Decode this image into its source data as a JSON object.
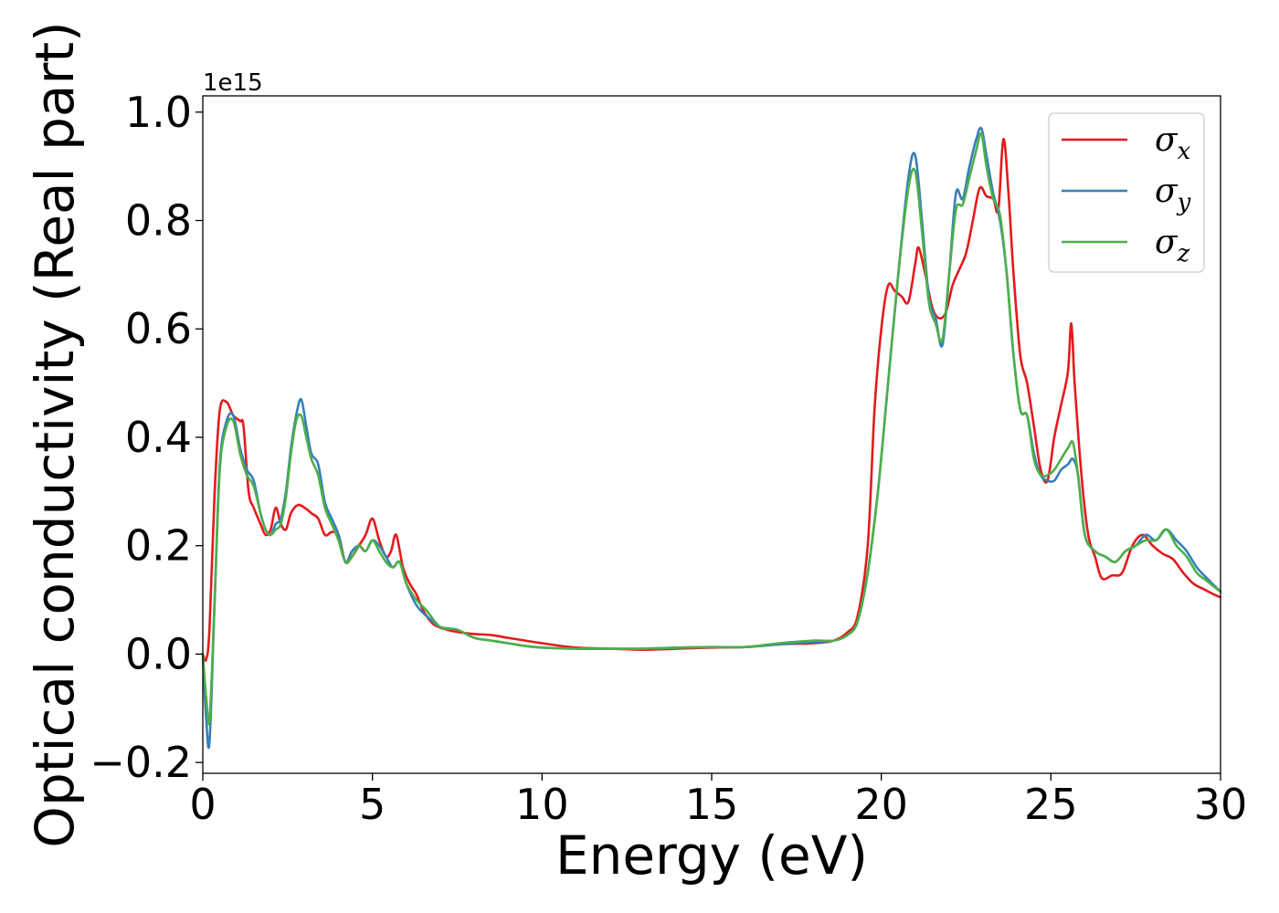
{
  "chart_data": {
    "type": "line",
    "xlabel": "Energy (eV)",
    "ylabel": "Optical conductivity (Real part)",
    "y_offset_text": "1e15",
    "xlim": [
      0,
      30
    ],
    "ylim": [
      -0.22,
      1.03
    ],
    "x_ticks": [
      0,
      5,
      10,
      15,
      20,
      25,
      30
    ],
    "x_tick_labels": [
      "0",
      "5",
      "10",
      "15",
      "20",
      "25",
      "30"
    ],
    "y_ticks": [
      -0.2,
      0.0,
      0.2,
      0.4,
      0.6,
      0.8,
      1.0
    ],
    "y_tick_labels": [
      "−0.2",
      "0.0",
      "0.2",
      "0.4",
      "0.6",
      "0.8",
      "1.0"
    ],
    "grid": false,
    "legend_position": "top-right",
    "series": [
      {
        "name": "σx",
        "symbol": "σ",
        "subscript": "x",
        "color": "#e41a1c",
        "x": [
          0,
          0.1,
          0.2,
          0.35,
          0.5,
          0.7,
          0.9,
          1.1,
          1.2,
          1.35,
          1.5,
          1.7,
          1.85,
          2.0,
          2.15,
          2.3,
          2.45,
          2.6,
          2.8,
          3.0,
          3.2,
          3.4,
          3.6,
          3.8,
          4.0,
          4.2,
          4.4,
          4.6,
          4.8,
          5.0,
          5.2,
          5.4,
          5.55,
          5.7,
          5.9,
          6.1,
          6.3,
          6.5,
          6.8,
          7.2,
          7.6,
          8.0,
          8.5,
          9.0,
          9.5,
          10,
          11,
          12,
          13,
          14,
          15,
          16,
          17,
          18,
          18.6,
          19.0,
          19.3,
          19.6,
          19.8,
          20.0,
          20.2,
          20.4,
          20.6,
          20.8,
          21.0,
          21.1,
          21.3,
          21.5,
          21.7,
          21.9,
          22.1,
          22.3,
          22.5,
          22.7,
          22.9,
          23.1,
          23.3,
          23.45,
          23.6,
          23.75,
          23.9,
          24.1,
          24.3,
          24.5,
          24.7,
          24.9,
          25.1,
          25.3,
          25.5,
          25.6,
          25.7,
          25.9,
          26.1,
          26.3,
          26.5,
          26.8,
          27.1,
          27.4,
          27.7,
          28.0,
          28.3,
          28.6,
          28.9,
          29.2,
          29.5,
          29.8,
          30
        ],
        "values": [
          0,
          -0.01,
          0.05,
          0.3,
          0.45,
          0.465,
          0.44,
          0.43,
          0.42,
          0.3,
          0.27,
          0.24,
          0.22,
          0.23,
          0.27,
          0.24,
          0.23,
          0.26,
          0.275,
          0.27,
          0.26,
          0.25,
          0.22,
          0.225,
          0.22,
          0.17,
          0.18,
          0.2,
          0.22,
          0.25,
          0.21,
          0.18,
          0.19,
          0.22,
          0.16,
          0.13,
          0.11,
          0.08,
          0.055,
          0.045,
          0.04,
          0.037,
          0.035,
          0.03,
          0.025,
          0.02,
          0.012,
          0.01,
          0.008,
          0.01,
          0.012,
          0.013,
          0.018,
          0.02,
          0.025,
          0.04,
          0.07,
          0.2,
          0.45,
          0.6,
          0.68,
          0.67,
          0.66,
          0.65,
          0.72,
          0.75,
          0.7,
          0.64,
          0.62,
          0.63,
          0.68,
          0.71,
          0.74,
          0.8,
          0.86,
          0.845,
          0.84,
          0.82,
          0.95,
          0.85,
          0.7,
          0.55,
          0.5,
          0.42,
          0.34,
          0.32,
          0.4,
          0.46,
          0.52,
          0.61,
          0.5,
          0.33,
          0.22,
          0.18,
          0.14,
          0.145,
          0.15,
          0.2,
          0.22,
          0.2,
          0.185,
          0.175,
          0.15,
          0.13,
          0.12,
          0.11,
          0.105
        ]
      },
      {
        "name": "σy",
        "symbol": "σ",
        "subscript": "y",
        "color": "#377eb8",
        "x": [
          0,
          0.1,
          0.2,
          0.35,
          0.5,
          0.7,
          0.9,
          1.1,
          1.3,
          1.5,
          1.7,
          1.85,
          2.0,
          2.15,
          2.3,
          2.45,
          2.6,
          2.75,
          2.9,
          3.05,
          3.2,
          3.4,
          3.6,
          3.8,
          4.0,
          4.2,
          4.4,
          4.6,
          4.8,
          5.0,
          5.2,
          5.4,
          5.6,
          5.8,
          6.0,
          6.3,
          6.6,
          7.0,
          7.5,
          8.0,
          8.5,
          9.0,
          9.5,
          10,
          11,
          12,
          13,
          14,
          15,
          16,
          17,
          18,
          18.6,
          19.0,
          19.3,
          19.6,
          19.9,
          20.2,
          20.5,
          20.8,
          21.0,
          21.2,
          21.4,
          21.6,
          21.8,
          22.0,
          22.2,
          22.4,
          22.6,
          22.8,
          22.95,
          23.1,
          23.3,
          23.5,
          23.7,
          23.9,
          24.1,
          24.3,
          24.5,
          24.7,
          24.9,
          25.1,
          25.3,
          25.5,
          25.65,
          25.8,
          26.0,
          26.3,
          26.6,
          26.9,
          27.2,
          27.5,
          27.8,
          28.1,
          28.4,
          28.7,
          29.0,
          29.3,
          29.6,
          30
        ],
        "values": [
          0,
          -0.12,
          -0.16,
          0.1,
          0.35,
          0.43,
          0.44,
          0.38,
          0.34,
          0.32,
          0.26,
          0.23,
          0.22,
          0.24,
          0.25,
          0.3,
          0.38,
          0.44,
          0.47,
          0.42,
          0.37,
          0.35,
          0.28,
          0.25,
          0.22,
          0.17,
          0.19,
          0.2,
          0.19,
          0.21,
          0.2,
          0.18,
          0.16,
          0.17,
          0.13,
          0.09,
          0.07,
          0.05,
          0.045,
          0.03,
          0.025,
          0.02,
          0.015,
          0.012,
          0.01,
          0.01,
          0.01,
          0.012,
          0.013,
          0.013,
          0.018,
          0.022,
          0.025,
          0.035,
          0.06,
          0.15,
          0.3,
          0.5,
          0.7,
          0.88,
          0.92,
          0.8,
          0.66,
          0.62,
          0.57,
          0.7,
          0.85,
          0.84,
          0.9,
          0.95,
          0.97,
          0.92,
          0.85,
          0.8,
          0.7,
          0.55,
          0.45,
          0.44,
          0.37,
          0.33,
          0.32,
          0.32,
          0.34,
          0.35,
          0.36,
          0.33,
          0.22,
          0.19,
          0.18,
          0.17,
          0.19,
          0.2,
          0.22,
          0.21,
          0.23,
          0.21,
          0.19,
          0.16,
          0.14,
          0.115
        ]
      },
      {
        "name": "σz",
        "symbol": "σ",
        "subscript": "z",
        "color": "#4daf4a",
        "x": [
          0,
          0.1,
          0.2,
          0.35,
          0.5,
          0.7,
          0.9,
          1.1,
          1.3,
          1.5,
          1.7,
          1.85,
          2.0,
          2.15,
          2.3,
          2.45,
          2.6,
          2.75,
          2.9,
          3.05,
          3.2,
          3.4,
          3.6,
          3.8,
          4.0,
          4.2,
          4.4,
          4.6,
          4.8,
          5.0,
          5.2,
          5.4,
          5.6,
          5.8,
          6.0,
          6.3,
          6.6,
          7.0,
          7.5,
          8.0,
          8.5,
          9.0,
          9.5,
          10,
          11,
          12,
          13,
          14,
          15,
          16,
          17,
          18,
          18.6,
          19.0,
          19.3,
          19.6,
          19.9,
          20.2,
          20.5,
          20.8,
          21.0,
          21.2,
          21.4,
          21.6,
          21.8,
          22.0,
          22.2,
          22.4,
          22.6,
          22.8,
          22.95,
          23.1,
          23.3,
          23.5,
          23.7,
          23.9,
          24.1,
          24.3,
          24.5,
          24.7,
          24.9,
          25.1,
          25.3,
          25.5,
          25.65,
          25.8,
          26.0,
          26.3,
          26.6,
          26.9,
          27.2,
          27.5,
          27.8,
          28.1,
          28.4,
          28.7,
          29.0,
          29.3,
          29.6,
          30
        ],
        "values": [
          0,
          -0.08,
          -0.12,
          0.1,
          0.34,
          0.42,
          0.43,
          0.37,
          0.33,
          0.31,
          0.26,
          0.23,
          0.22,
          0.23,
          0.24,
          0.29,
          0.37,
          0.43,
          0.44,
          0.4,
          0.36,
          0.33,
          0.27,
          0.24,
          0.21,
          0.17,
          0.18,
          0.2,
          0.19,
          0.21,
          0.19,
          0.17,
          0.16,
          0.17,
          0.13,
          0.1,
          0.08,
          0.05,
          0.045,
          0.03,
          0.025,
          0.02,
          0.015,
          0.012,
          0.01,
          0.01,
          0.01,
          0.012,
          0.013,
          0.013,
          0.02,
          0.025,
          0.025,
          0.035,
          0.06,
          0.15,
          0.3,
          0.5,
          0.7,
          0.86,
          0.89,
          0.78,
          0.65,
          0.61,
          0.58,
          0.7,
          0.82,
          0.83,
          0.88,
          0.93,
          0.96,
          0.9,
          0.84,
          0.81,
          0.7,
          0.55,
          0.45,
          0.44,
          0.36,
          0.33,
          0.33,
          0.34,
          0.36,
          0.38,
          0.39,
          0.33,
          0.22,
          0.19,
          0.18,
          0.17,
          0.19,
          0.2,
          0.21,
          0.21,
          0.23,
          0.2,
          0.18,
          0.15,
          0.135,
          0.115
        ]
      }
    ]
  }
}
